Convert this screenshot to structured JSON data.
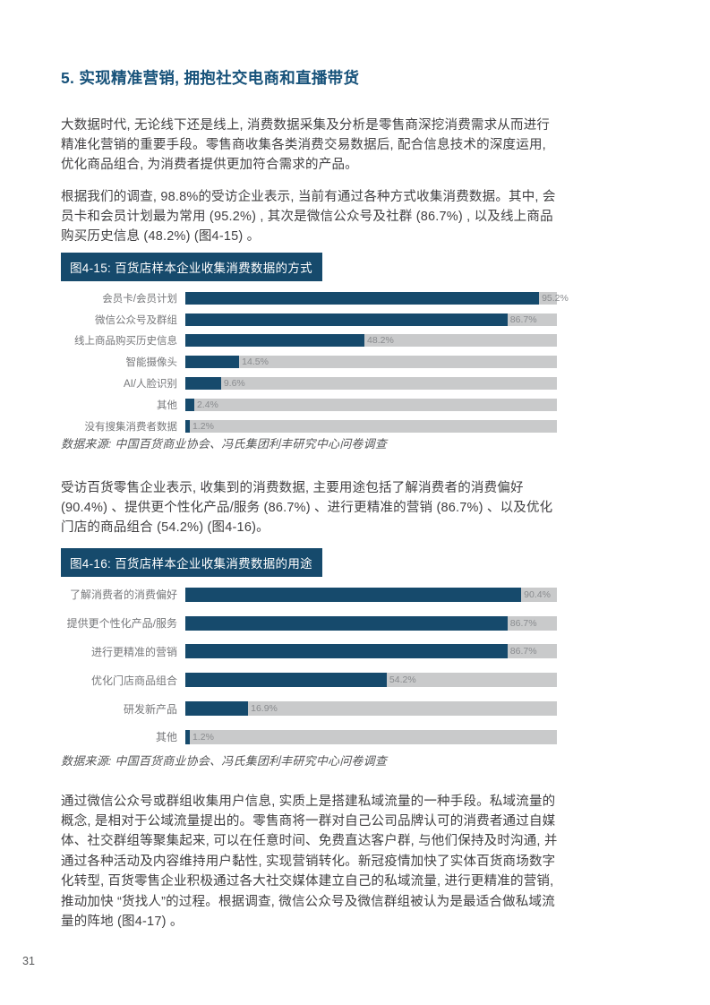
{
  "page_number": "31",
  "colors": {
    "heading_blue": "#17527a",
    "accent_navy": "#164a6c",
    "track_gray": "#c9cacb",
    "body_text": "#414042",
    "category_gray": "#77787b",
    "value_gray": "#8a8c8f"
  },
  "heading": "5. 实现精准营销, 拥抱社交电商和直播带货",
  "paragraphs": {
    "p1": "大数据时代, 无论线下还是线上, 消费数据采集及分析是零售商深挖消费需求从而进行精准化营销的重要手段。零售商收集各类消费交易数据后, 配合信息技术的深度运用, 优化商品组合, 为消费者提供更加符合需求的产品。",
    "p2": "根据我们的调查, 98.8%的受访企业表示, 当前有通过各种方式收集消费数据。其中, 会员卡和会员计划最为常用 (95.2%) , 其次是微信公众号及社群 (86.7%) , 以及线上商品购买历史信息 (48.2%)  (图4-15) 。",
    "p3": "受访百货零售企业表示, 收集到的消费数据, 主要用途包括了解消费者的消费偏好 (90.4%) 、提供更个性化产品/服务 (86.7%) 、进行更精准的营销 (86.7%) 、以及优化门店的商品组合 (54.2%) (图4-16)。",
    "p4": "通过微信公众号或群组收集用户信息, 实质上是搭建私域流量的一种手段。私域流量的概念, 是相对于公域流量提出的。零售商将一群对自己公司品牌认可的消费者通过自媒体、社交群组等聚集起来, 可以在任意时间、免费直达客户群, 与他们保持及时沟通, 并通过各种活动及内容维持用户黏性, 实现营销转化。新冠疫情加快了实体百货商场数字化转型, 百货零售企业积极通过各大社交媒体建立自己的私域流量, 进行更精准的营销, 推动加快 “货找人”的过程。根据调查, 微信公众号及微信群组被认为是最适合做私域流量的阵地 (图4-17) 。"
  },
  "chart_data": [
    {
      "type": "bar",
      "orientation": "horizontal",
      "title": "图4-15: 百货店样本企业收集消费数据的方式",
      "categories": [
        "会员卡/会员计划",
        "微信公众号及群组",
        "线上商品购买历史信息",
        "智能摄像头",
        "AI/人脸识别",
        "其他",
        "没有搜集消费者数据"
      ],
      "values": [
        95.2,
        86.7,
        48.2,
        14.5,
        9.6,
        2.4,
        1.2
      ],
      "value_labels": [
        "95.2%",
        "86.7%",
        "48.2%",
        "14.5%",
        "9.6%",
        "2.4%",
        "1.2%"
      ],
      "xlim": [
        0,
        100
      ],
      "grid": false,
      "legend": false,
      "bar_color": "#164a6c",
      "track_color": "#c9cacb",
      "source": "数据来源: 中国百货商业协会、冯氏集团利丰研究中心问卷调查"
    },
    {
      "type": "bar",
      "orientation": "horizontal",
      "title": "图4-16: 百货店样本企业收集消费数据的用途",
      "categories": [
        "了解消费者的消费偏好",
        "提供更个性化产品/服务",
        "进行更精准的营销",
        "优化门店商品组合",
        "研发新产品",
        "其他"
      ],
      "values": [
        90.4,
        86.7,
        86.7,
        54.2,
        16.9,
        1.2
      ],
      "value_labels": [
        "90.4%",
        "86.7%",
        "86.7%",
        "54.2%",
        "16.9%",
        "1.2%"
      ],
      "xlim": [
        0,
        100
      ],
      "grid": false,
      "legend": false,
      "bar_color": "#164a6c",
      "track_color": "#c9cacb",
      "source": "数据来源: 中国百货商业协会、冯氏集团利丰研究中心问卷调查"
    }
  ]
}
